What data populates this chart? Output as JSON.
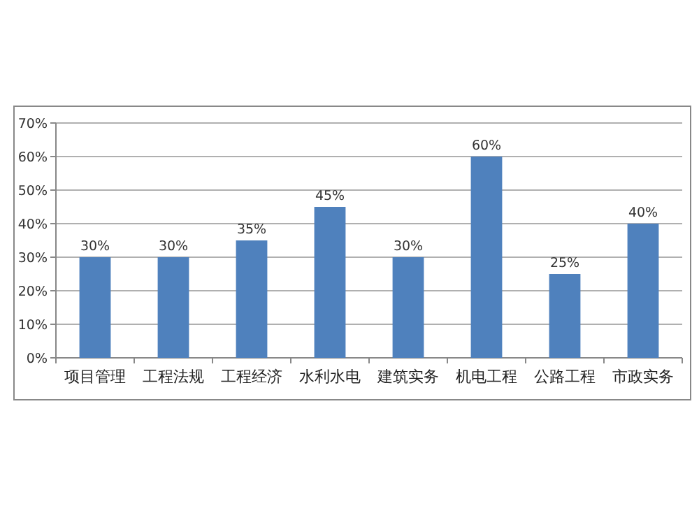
{
  "chart_data": {
    "type": "bar",
    "categories": [
      "项目管理",
      "工程法规",
      "工程经济",
      "水利水电",
      "建筑实务",
      "机电工程",
      "公路工程",
      "市政实务"
    ],
    "values": [
      30,
      30,
      35,
      45,
      30,
      60,
      25,
      40
    ],
    "value_labels": [
      "30%",
      "30%",
      "35%",
      "45%",
      "30%",
      "60%",
      "25%",
      "40%"
    ],
    "color": "#4f81bd",
    "ylim": [
      0,
      70
    ],
    "yticks": [
      {
        "value": 0,
        "label": "0%"
      },
      {
        "value": 10,
        "label": "10%"
      },
      {
        "value": 20,
        "label": "20%"
      },
      {
        "value": 30,
        "label": "30%"
      },
      {
        "value": 40,
        "label": "40%"
      },
      {
        "value": 50,
        "label": "50%"
      },
      {
        "value": 60,
        "label": "60%"
      },
      {
        "value": 70,
        "label": "70%"
      }
    ],
    "grid": "y"
  }
}
